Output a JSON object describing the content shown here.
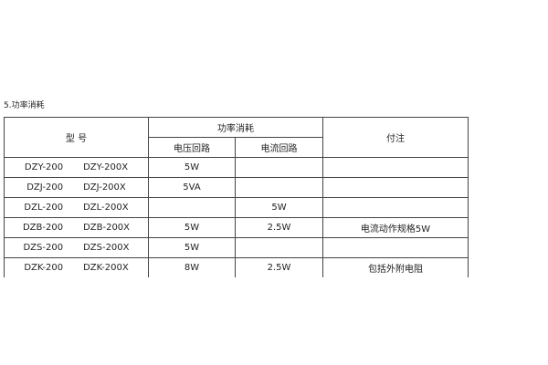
{
  "section_title": "5.功率消耗",
  "header": {
    "model": "型  号",
    "power": "功率消耗",
    "voltage": "电压回路",
    "current": "电流回路",
    "note": "付注"
  },
  "rows": [
    {
      "model_a": "DZY-200",
      "model_b": "DZY-200X",
      "voltage": "5W",
      "current": "",
      "note": ""
    },
    {
      "model_a": "DZJ-200",
      "model_b": "DZJ-200X",
      "voltage": "5VA",
      "current": "",
      "note": ""
    },
    {
      "model_a": "DZL-200",
      "model_b": "DZL-200X",
      "voltage": "",
      "current": "5W",
      "note": ""
    },
    {
      "model_a": "DZB-200",
      "model_b": "DZB-200X",
      "voltage": "5W",
      "current": "2.5W",
      "note": "电流动作规格5W"
    },
    {
      "model_a": "DZS-200",
      "model_b": "DZS-200X",
      "voltage": "5W",
      "current": "",
      "note": ""
    },
    {
      "model_a": "DZK-200",
      "model_b": "DZK-200X",
      "voltage": "8W",
      "current": "2.5W",
      "note": "包括外附电阻"
    }
  ]
}
